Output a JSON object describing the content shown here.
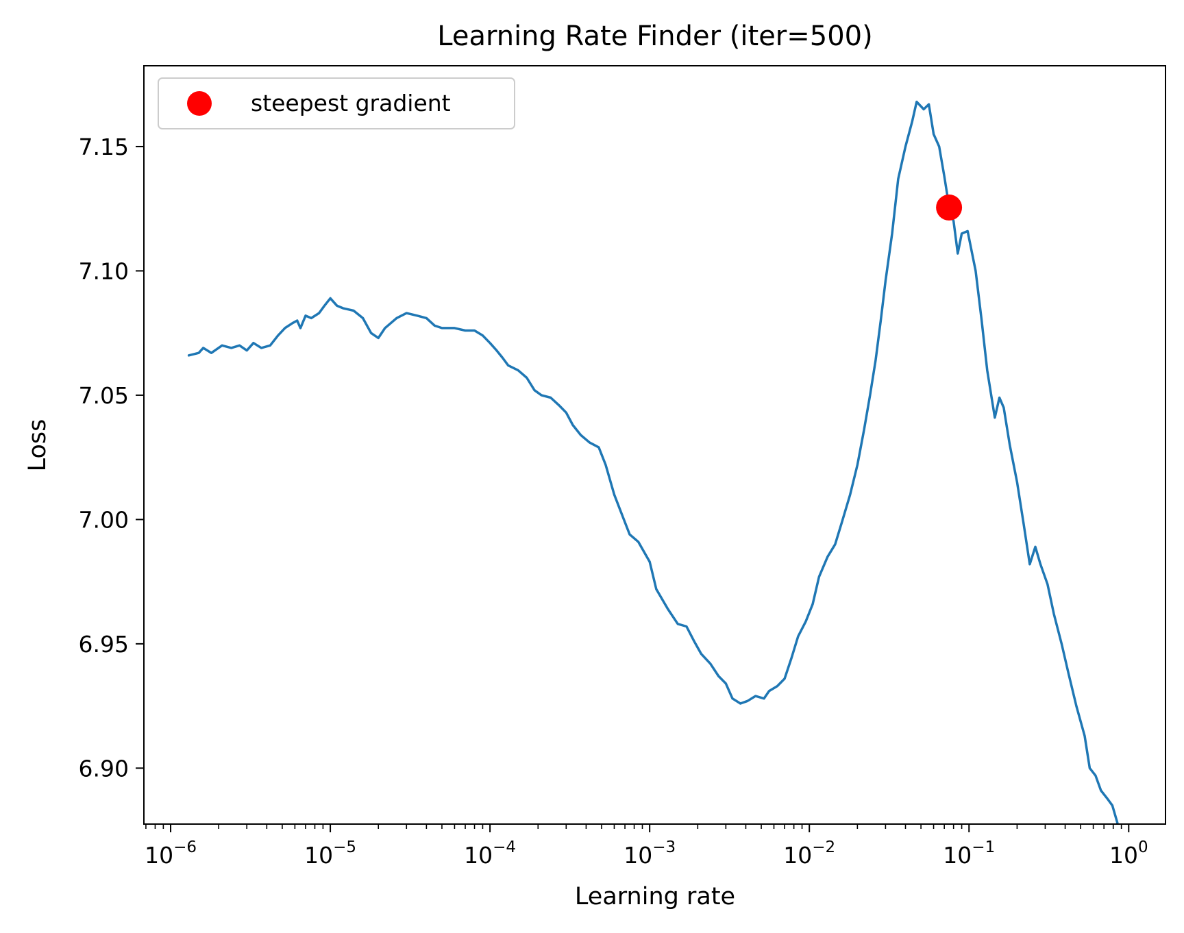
{
  "chart_data": {
    "type": "line",
    "title": "Learning Rate Finder (iter=500)",
    "xlabel": "Learning rate",
    "ylabel": "Loss",
    "xscale": "log",
    "xlim": [
      6.8e-07,
      1.7
    ],
    "ylim": [
      6.8775,
      7.1825
    ],
    "grid": false,
    "legend": {
      "placement": "top-left",
      "entries": [
        "steepest gradient"
      ]
    },
    "x_ticks": [
      {
        "value": 1e-06,
        "base": "10",
        "exp": "−6"
      },
      {
        "value": 1e-05,
        "base": "10",
        "exp": "−5"
      },
      {
        "value": 0.0001,
        "base": "10",
        "exp": "−4"
      },
      {
        "value": 0.001,
        "base": "10",
        "exp": "−3"
      },
      {
        "value": 0.01,
        "base": "10",
        "exp": "−2"
      },
      {
        "value": 0.1,
        "base": "10",
        "exp": "−1"
      },
      {
        "value": 1,
        "base": "10",
        "exp": "0"
      }
    ],
    "y_ticks": [
      {
        "value": 6.9,
        "label": "6.90"
      },
      {
        "value": 6.95,
        "label": "6.95"
      },
      {
        "value": 7.0,
        "label": "7.00"
      },
      {
        "value": 7.05,
        "label": "7.05"
      },
      {
        "value": 7.1,
        "label": "7.10"
      },
      {
        "value": 7.15,
        "label": "7.15"
      }
    ],
    "series": [
      {
        "color": "#1f77b4",
        "points": [
          [
            1.3e-06,
            7.066
          ],
          [
            1.5e-06,
            7.067
          ],
          [
            1.6e-06,
            7.069
          ],
          [
            1.8e-06,
            7.067
          ],
          [
            2.1e-06,
            7.07
          ],
          [
            2.4e-06,
            7.069
          ],
          [
            2.7e-06,
            7.07
          ],
          [
            3e-06,
            7.068
          ],
          [
            3.3e-06,
            7.071
          ],
          [
            3.7e-06,
            7.069
          ],
          [
            4.2e-06,
            7.07
          ],
          [
            4.7e-06,
            7.074
          ],
          [
            5.2e-06,
            7.077
          ],
          [
            5.8e-06,
            7.079
          ],
          [
            6.2e-06,
            7.08
          ],
          [
            6.5e-06,
            7.077
          ],
          [
            7e-06,
            7.082
          ],
          [
            7.6e-06,
            7.081
          ],
          [
            8.5e-06,
            7.083
          ],
          [
            9.2e-06,
            7.086
          ],
          [
            1e-05,
            7.089
          ],
          [
            1.1e-05,
            7.086
          ],
          [
            1.2e-05,
            7.085
          ],
          [
            1.4e-05,
            7.084
          ],
          [
            1.6e-05,
            7.081
          ],
          [
            1.8e-05,
            7.075
          ],
          [
            2e-05,
            7.073
          ],
          [
            2.2e-05,
            7.077
          ],
          [
            2.6e-05,
            7.081
          ],
          [
            3e-05,
            7.083
          ],
          [
            3.5e-05,
            7.082
          ],
          [
            4e-05,
            7.081
          ],
          [
            4.5e-05,
            7.078
          ],
          [
            5e-05,
            7.077
          ],
          [
            6e-05,
            7.077
          ],
          [
            7e-05,
            7.076
          ],
          [
            8e-05,
            7.076
          ],
          [
            9e-05,
            7.074
          ],
          [
            0.0001,
            7.071
          ],
          [
            0.00011,
            7.068
          ],
          [
            0.00012,
            7.065
          ],
          [
            0.00013,
            7.062
          ],
          [
            0.00015,
            7.06
          ],
          [
            0.00017,
            7.057
          ],
          [
            0.00019,
            7.052
          ],
          [
            0.00021,
            7.05
          ],
          [
            0.00024,
            7.049
          ],
          [
            0.00027,
            7.046
          ],
          [
            0.0003,
            7.043
          ],
          [
            0.00033,
            7.038
          ],
          [
            0.00037,
            7.034
          ],
          [
            0.00042,
            7.031
          ],
          [
            0.00048,
            7.029
          ],
          [
            0.00053,
            7.022
          ],
          [
            0.0006,
            7.01
          ],
          [
            0.00068,
            7.001
          ],
          [
            0.00075,
            6.994
          ],
          [
            0.00085,
            6.991
          ],
          [
            0.001,
            6.983
          ],
          [
            0.0011,
            6.972
          ],
          [
            0.0013,
            6.964
          ],
          [
            0.0015,
            6.958
          ],
          [
            0.0017,
            6.957
          ],
          [
            0.0019,
            6.951
          ],
          [
            0.0021,
            6.946
          ],
          [
            0.0024,
            6.942
          ],
          [
            0.0027,
            6.937
          ],
          [
            0.003,
            6.934
          ],
          [
            0.0033,
            6.928
          ],
          [
            0.0037,
            6.926
          ],
          [
            0.0041,
            6.927
          ],
          [
            0.0046,
            6.929
          ],
          [
            0.0052,
            6.928
          ],
          [
            0.0056,
            6.931
          ],
          [
            0.0063,
            6.933
          ],
          [
            0.007,
            6.936
          ],
          [
            0.0077,
            6.944
          ],
          [
            0.0085,
            6.953
          ],
          [
            0.0095,
            6.959
          ],
          [
            0.0105,
            6.966
          ],
          [
            0.0115,
            6.977
          ],
          [
            0.013,
            6.985
          ],
          [
            0.0145,
            6.99
          ],
          [
            0.016,
            6.999
          ],
          [
            0.018,
            7.01
          ],
          [
            0.02,
            7.022
          ],
          [
            0.022,
            7.036
          ],
          [
            0.024,
            7.05
          ],
          [
            0.026,
            7.064
          ],
          [
            0.028,
            7.08
          ],
          [
            0.03,
            7.096
          ],
          [
            0.033,
            7.115
          ],
          [
            0.036,
            7.137
          ],
          [
            0.04,
            7.15
          ],
          [
            0.044,
            7.16
          ],
          [
            0.047,
            7.168
          ],
          [
            0.052,
            7.165
          ],
          [
            0.056,
            7.167
          ],
          [
            0.06,
            7.155
          ],
          [
            0.065,
            7.15
          ],
          [
            0.07,
            7.138
          ],
          [
            0.075,
            7.126
          ],
          [
            0.08,
            7.12
          ],
          [
            0.085,
            7.107
          ],
          [
            0.09,
            7.115
          ],
          [
            0.098,
            7.116
          ],
          [
            0.11,
            7.1
          ],
          [
            0.12,
            7.08
          ],
          [
            0.13,
            7.06
          ],
          [
            0.145,
            7.041
          ],
          [
            0.155,
            7.049
          ],
          [
            0.165,
            7.045
          ],
          [
            0.18,
            7.03
          ],
          [
            0.2,
            7.015
          ],
          [
            0.22,
            6.998
          ],
          [
            0.24,
            6.982
          ],
          [
            0.26,
            6.989
          ],
          [
            0.28,
            6.982
          ],
          [
            0.31,
            6.974
          ],
          [
            0.34,
            6.962
          ],
          [
            0.38,
            6.95
          ],
          [
            0.42,
            6.938
          ],
          [
            0.47,
            6.925
          ],
          [
            0.53,
            6.913
          ],
          [
            0.57,
            6.9
          ],
          [
            0.62,
            6.897
          ],
          [
            0.67,
            6.891
          ],
          [
            0.73,
            6.888
          ],
          [
            0.79,
            6.885
          ],
          [
            0.85,
            6.878
          ]
        ]
      }
    ],
    "markers": [
      {
        "label": "steepest gradient",
        "x": 0.075,
        "y": 7.1255,
        "color": "#ff0000"
      }
    ]
  }
}
